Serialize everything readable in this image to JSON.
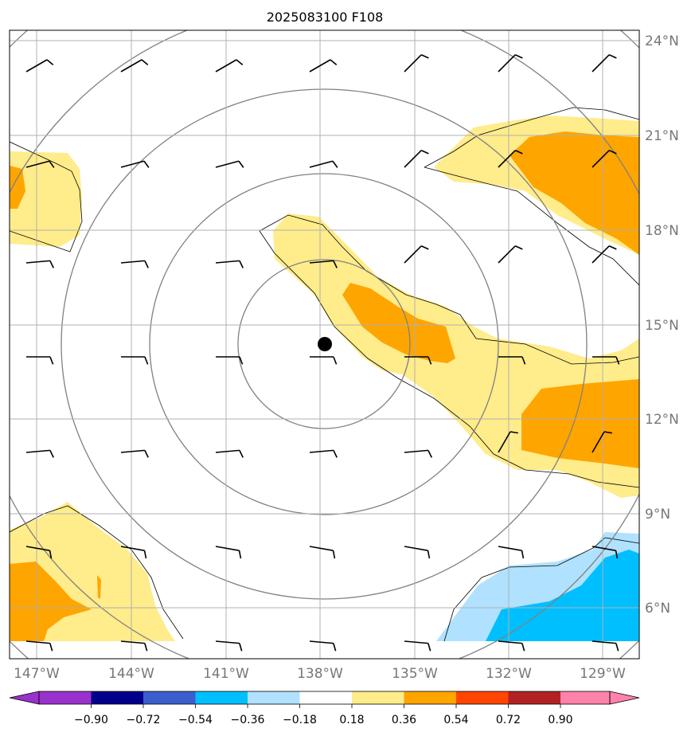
{
  "title": "2025083100 F108",
  "lat_labels": [
    "24°N",
    "21°N",
    "18°N",
    "15°N",
    "12°N",
    "9°N",
    "6°N"
  ],
  "lon_labels": [
    "147°W",
    "144°W",
    "141°W",
    "138°W",
    "135°W",
    "132°W",
    "129°W"
  ],
  "colorbar": {
    "tick_labels": [
      "−0.90",
      "−0.72",
      "−0.54",
      "−0.36",
      "−0.18",
      "0.18",
      "0.36",
      "0.54",
      "0.72",
      "0.90"
    ],
    "colors": [
      "#9932CC",
      "#00008B",
      "#3A5FCD",
      "#00BFFF",
      "#B0E2FF",
      "#FFFFFF",
      "#FFEC8B",
      "#FFA500",
      "#FF4500",
      "#B22222",
      "#FF82AB"
    ]
  },
  "fill_colors": {
    "pos_low": "#FFEC8B",
    "pos_mid": "#FFA500",
    "neg_low": "#B0E2FF",
    "neg_mid": "#00BFFF"
  },
  "center_marker": {
    "lon": -137.9,
    "lat": 14.4
  }
}
